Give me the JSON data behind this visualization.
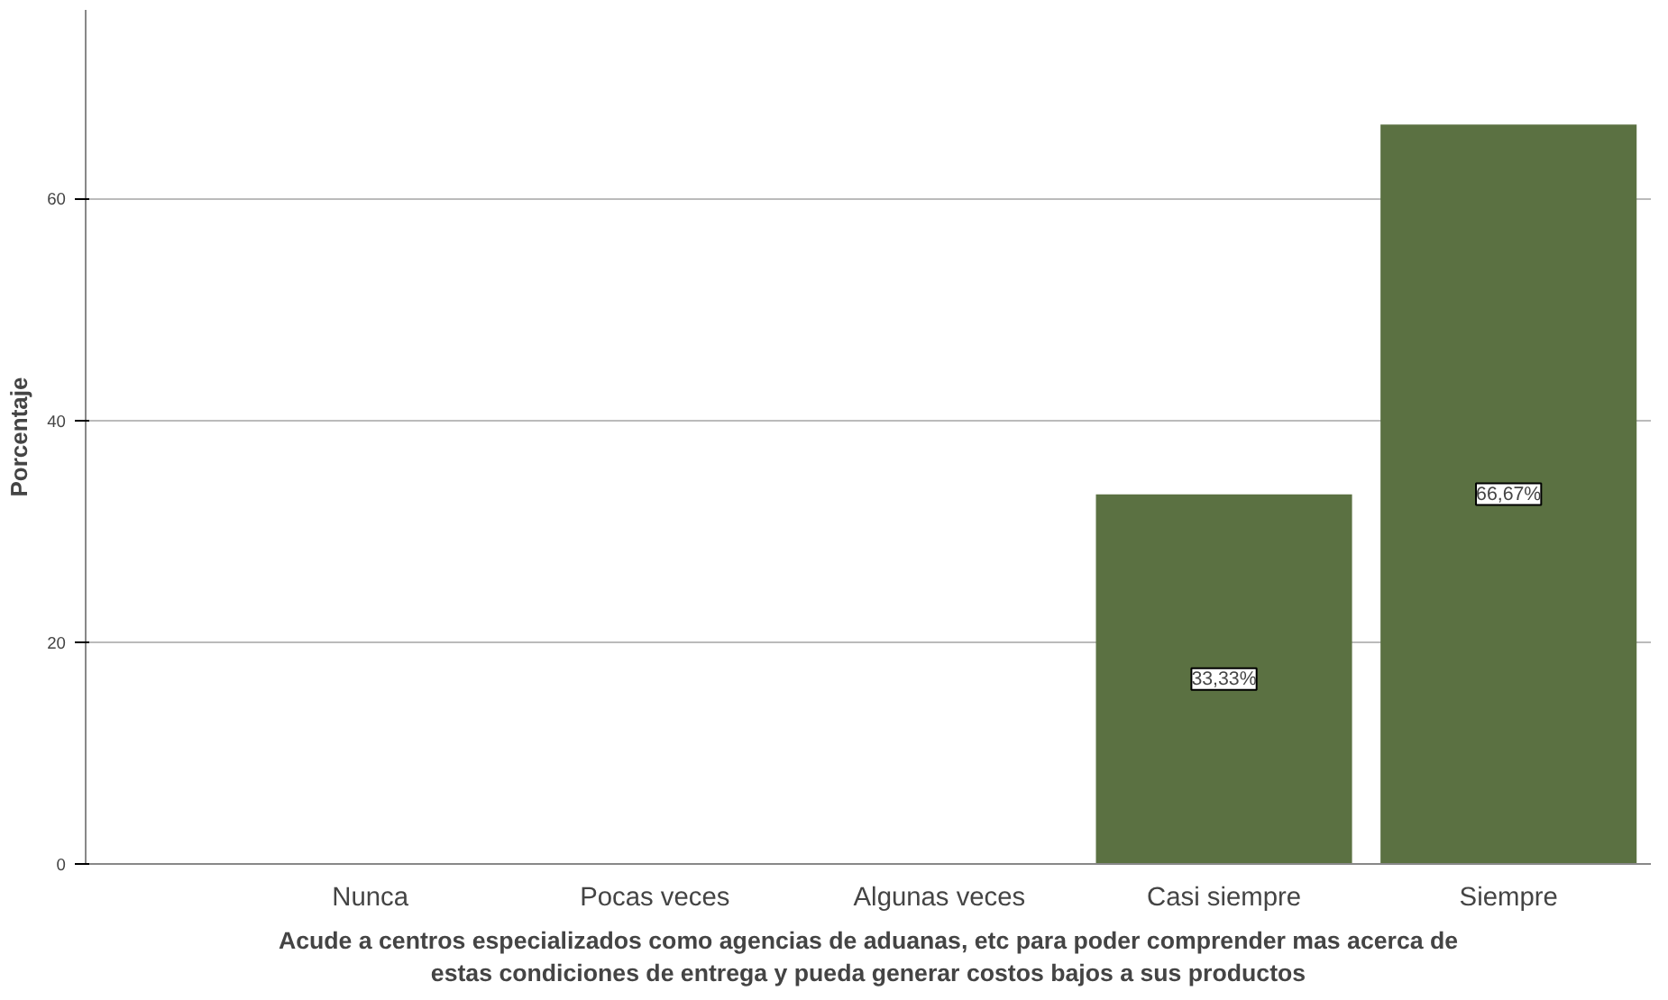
{
  "chart_data": {
    "type": "bar",
    "categories": [
      "Nunca",
      "Pocas veces",
      "Algunas veces",
      "Casi siempre",
      "Siempre"
    ],
    "values": [
      0,
      0,
      0,
      33.33,
      66.67
    ],
    "value_labels": [
      null,
      null,
      null,
      "33,33%",
      "66,67%"
    ],
    "color": "#5b7142",
    "ylabel": "Porcentaje",
    "xlabel": "Acude a centros especializados como agencias de aduanas, etc para poder comprender mas acerca de estas condiciones de entrega y pueda generar costos bajos a sus productos",
    "ylim": [
      0,
      77
    ],
    "yticks": [
      0,
      20,
      40,
      60
    ],
    "grid": "y"
  }
}
